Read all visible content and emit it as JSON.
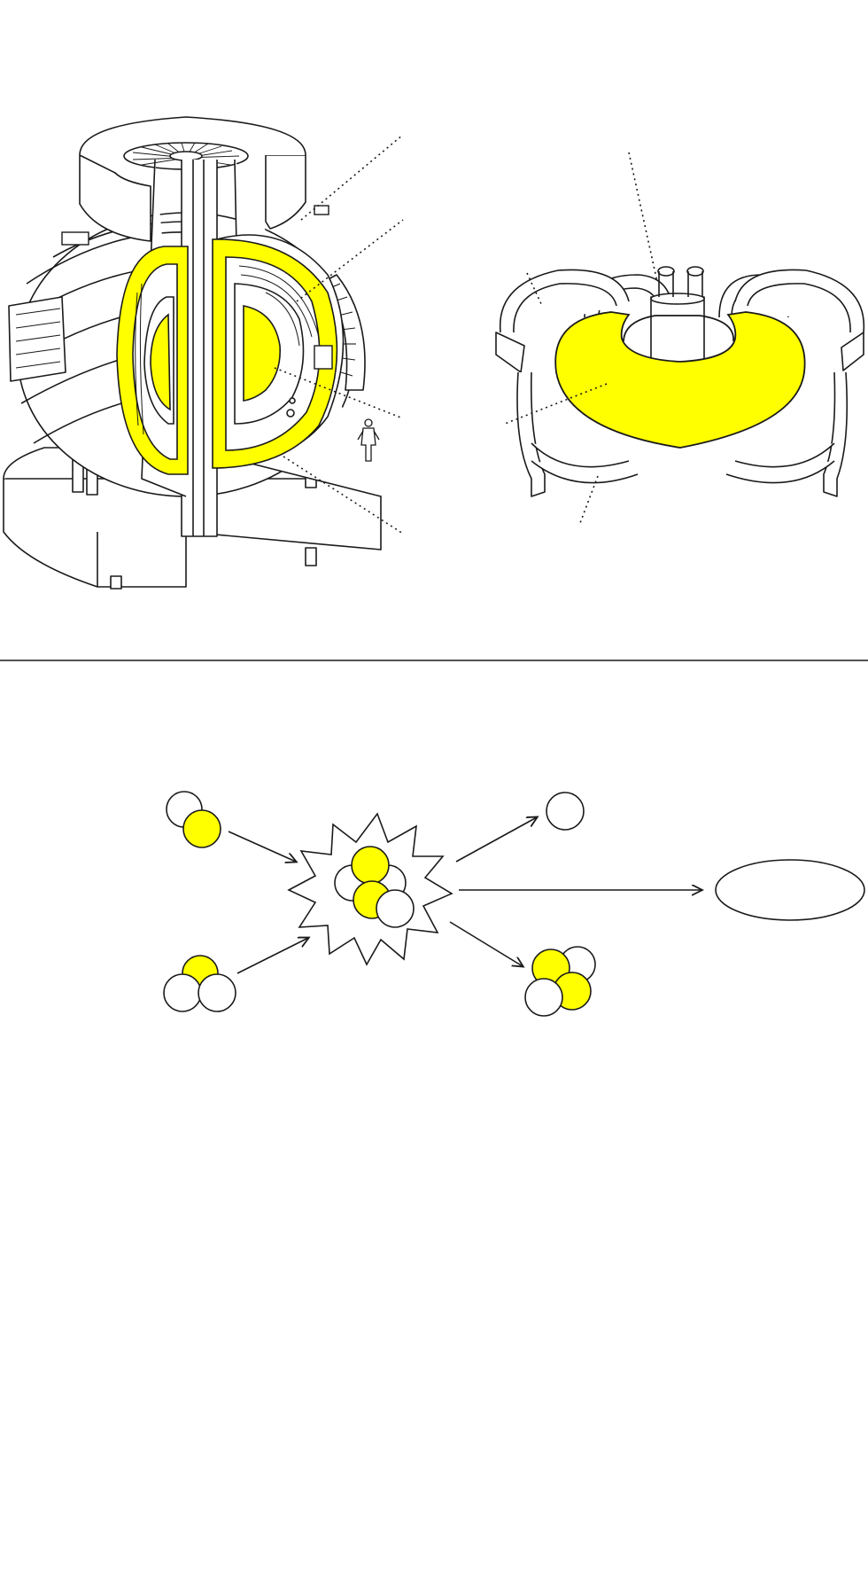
{
  "colors": {
    "background": "#ffffff",
    "line": "#1a1a1a",
    "highlight": "#ffff00"
  },
  "panels": {
    "top": {
      "tokamak_cutaway": {
        "icon": "tokamak-cutaway-illustration",
        "highlight": "vacuum-vessel-and-plasma"
      },
      "torus_coils": {
        "icon": "torus-with-field-coils-illustration",
        "highlight": "plasma-torus"
      }
    },
    "bottom": {
      "reactants": [
        "deuterium-nucleus",
        "tritium-nucleus"
      ],
      "products": [
        "neutron",
        "helium-nucleus",
        "energy-output"
      ]
    }
  }
}
